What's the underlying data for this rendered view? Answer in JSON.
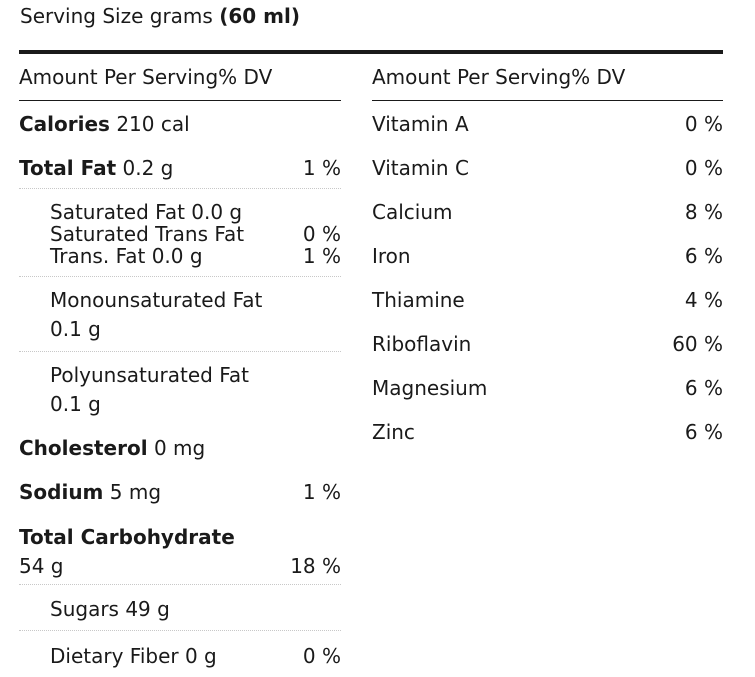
{
  "serving": {
    "label": "Serving Size grams",
    "value": "(60 ml)"
  },
  "left": {
    "header": "Amount Per Serving% DV",
    "calories": {
      "label": "Calories",
      "value": "210 cal"
    },
    "total_fat": {
      "label": "Total Fat",
      "value": "0.2 g",
      "dv": "1 %"
    },
    "saturated_fat": {
      "text": "Saturated Fat 0.0 g",
      "dv": ""
    },
    "saturated_trans_fat": {
      "text": "Saturated Trans Fat",
      "dv": "0 %"
    },
    "trans_fat": {
      "text": "Trans. Fat 0.0 g",
      "dv": "1 %"
    },
    "mono_fat": {
      "line1": "Monounsaturated Fat",
      "line2": "0.1 g"
    },
    "poly_fat": {
      "line1": "Polyunsaturated Fat",
      "line2": "0.1 g"
    },
    "cholesterol": {
      "label": "Cholesterol",
      "value": "0 mg"
    },
    "sodium": {
      "label": "Sodium",
      "value": "5 mg",
      "dv": "1 %"
    },
    "total_carb": {
      "label": "Total Carbohydrate",
      "value": "54 g",
      "dv": "18 %"
    },
    "sugars": {
      "text": "Sugars 49 g"
    },
    "fiber": {
      "text": "Dietary Fiber 0 g",
      "dv": "0 %"
    }
  },
  "right": {
    "header": "Amount Per Serving% DV",
    "vitamins": [
      {
        "name": "Vitamin A",
        "dv": "0 %"
      },
      {
        "name": "Vitamin C",
        "dv": "0 %"
      },
      {
        "name": "Calcium",
        "dv": "8 %"
      },
      {
        "name": "Iron",
        "dv": "6 %"
      },
      {
        "name": "Thiamine",
        "dv": "4 %"
      },
      {
        "name": "Riboflavin",
        "dv": "60 %"
      },
      {
        "name": "Magnesium",
        "dv": "6 %"
      },
      {
        "name": "Zinc",
        "dv": "6 %"
      }
    ]
  }
}
